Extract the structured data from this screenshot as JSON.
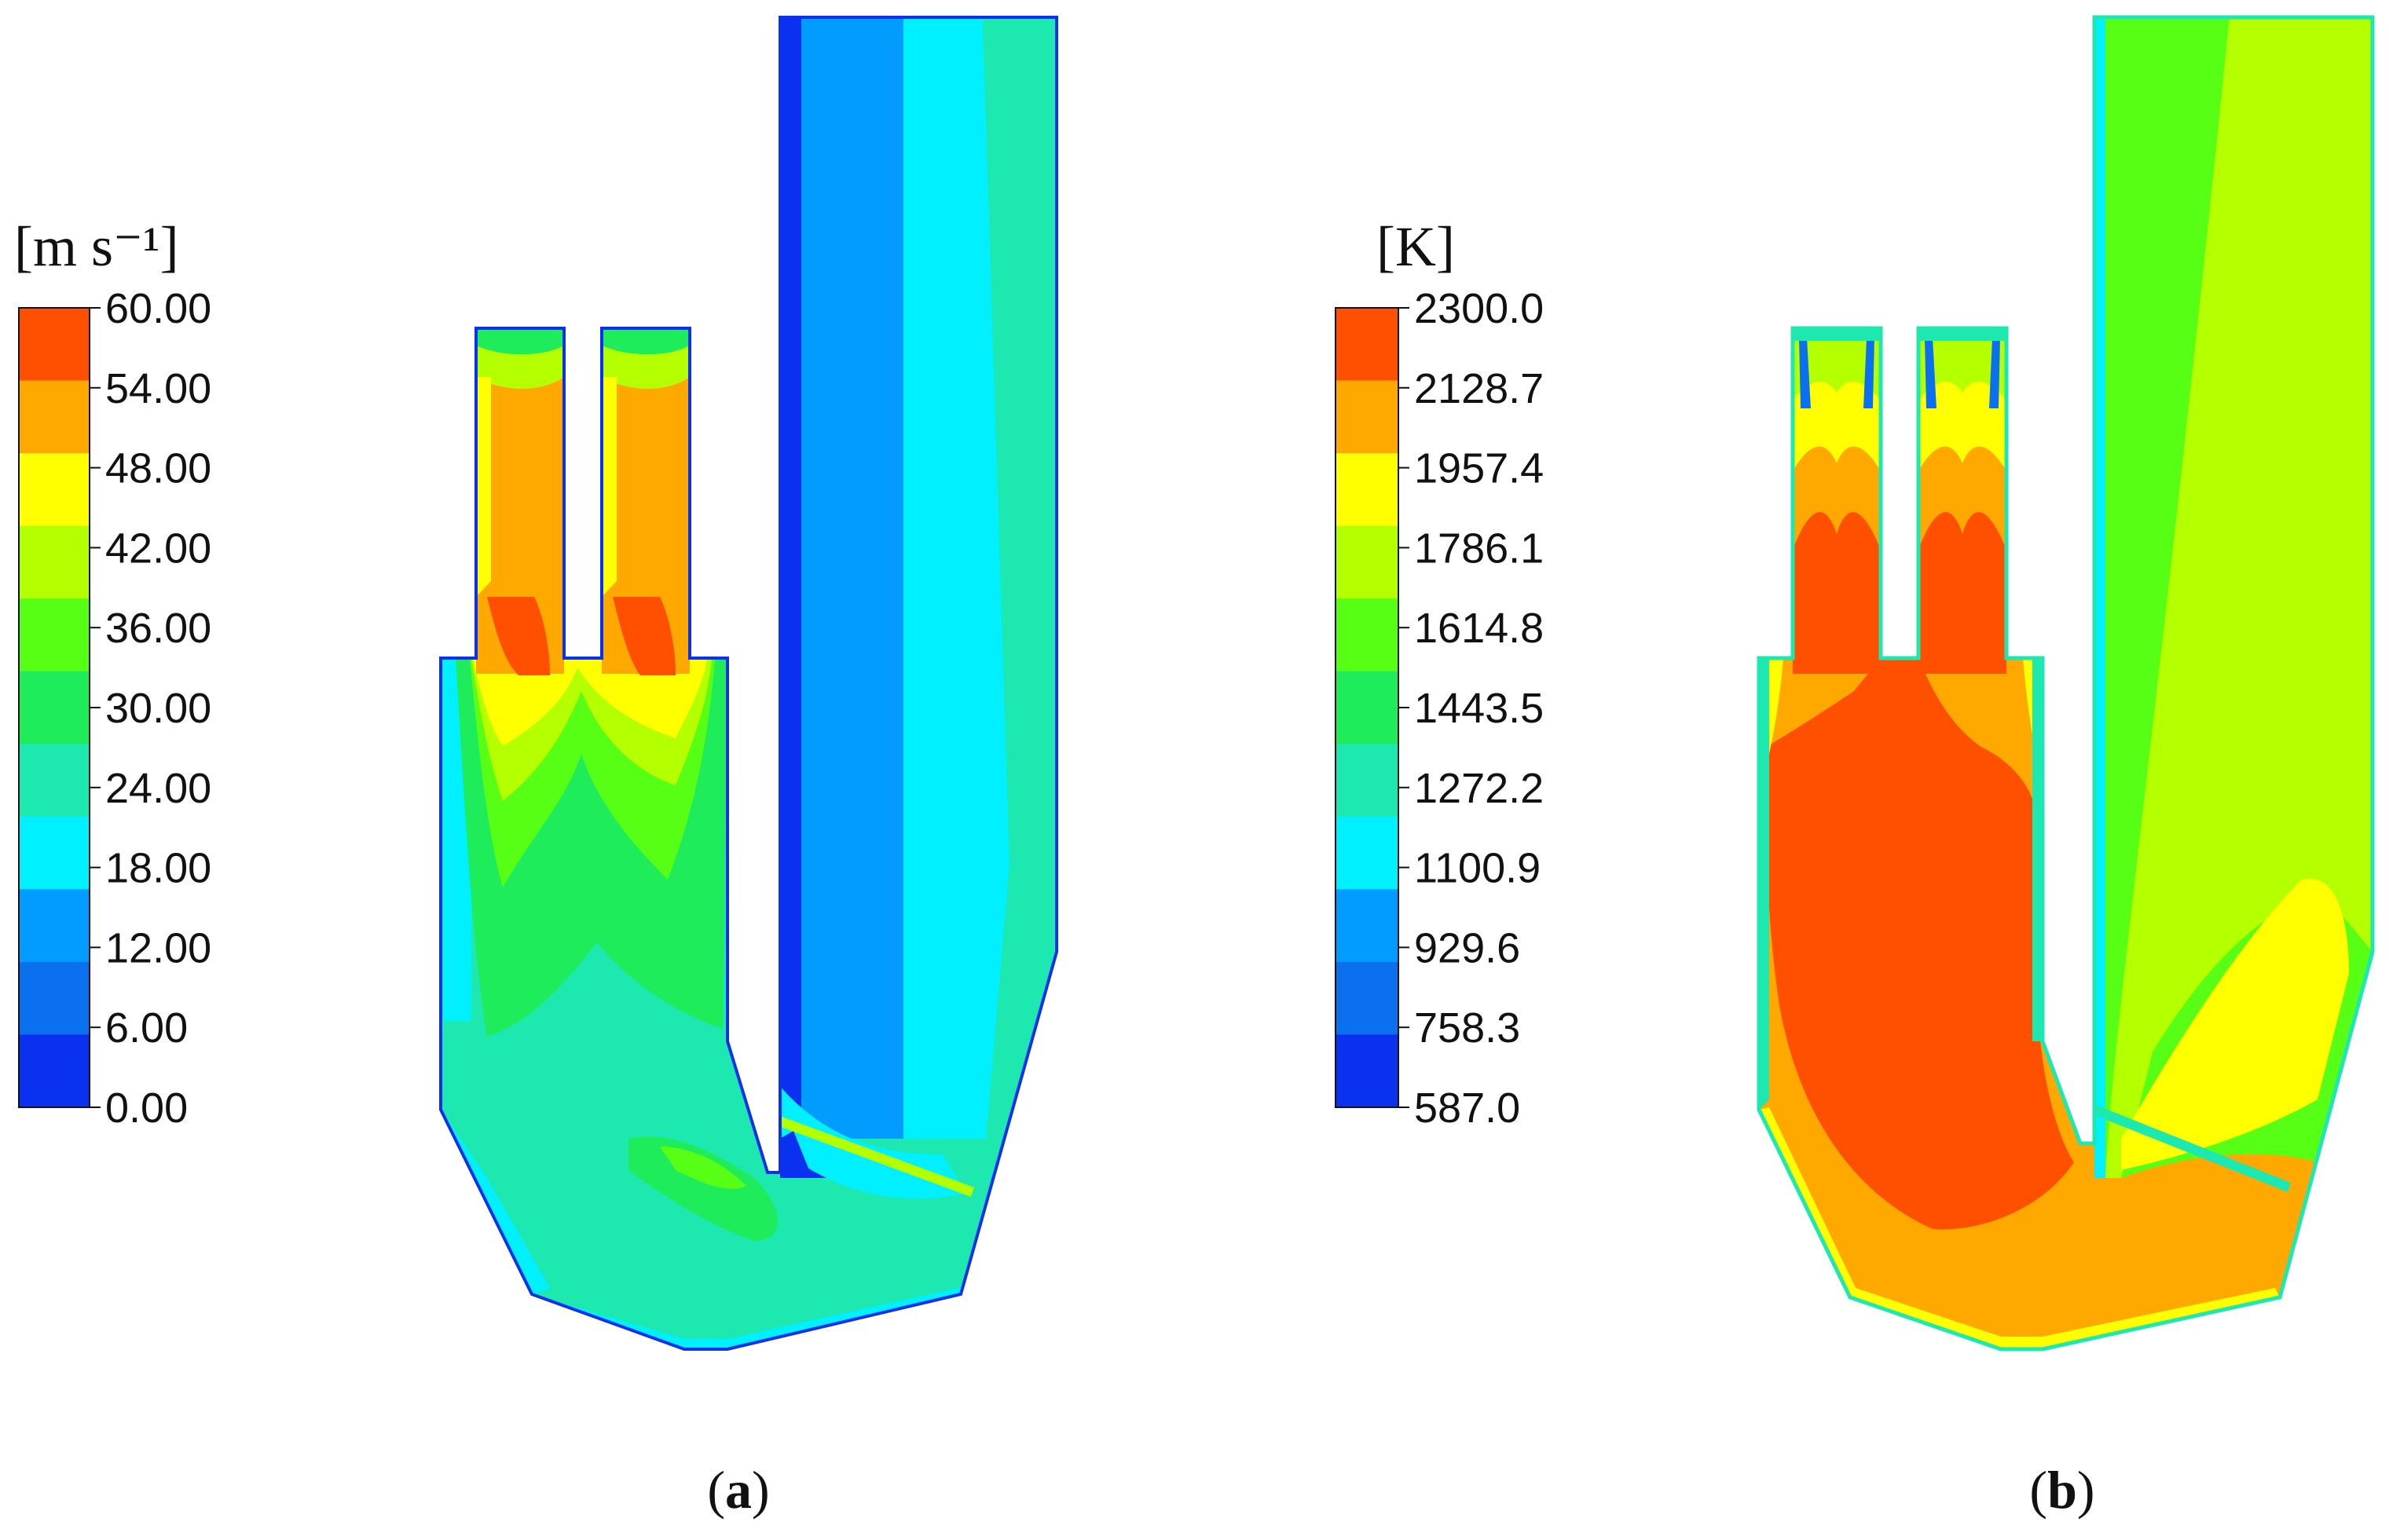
{
  "panels": [
    {
      "id": "a",
      "unit": "[m s⁻¹]",
      "caption_open": "(",
      "caption_letter": "a",
      "caption_close": ")",
      "ticks": [
        "60.00",
        "54.00",
        "48.00",
        "42.00",
        "36.00",
        "30.00",
        "24.00",
        "18.00",
        "12.00",
        "6.00",
        "0.00"
      ],
      "band_colors": [
        "#ff5000",
        "#ffa800",
        "#ffff00",
        "#b4ff00",
        "#56ff14",
        "#1eec5a",
        "#1ce8b0",
        "#00f0ff",
        "#009cff",
        "#0a70f0",
        "#0a30f0"
      ]
    },
    {
      "id": "b",
      "unit": "[K]",
      "caption_open": "(",
      "caption_letter": "b",
      "caption_close": ")",
      "ticks": [
        "2300.0",
        "2128.7",
        "1957.4",
        "1786.1",
        "1614.8",
        "1443.5",
        "1272.2",
        "1100.9",
        "929.6",
        "758.3",
        "587.0"
      ],
      "band_colors": [
        "#ff5000",
        "#ffa800",
        "#ffff00",
        "#b4ff00",
        "#56ff14",
        "#1eec5a",
        "#1ce8b0",
        "#00f0ff",
        "#009cff",
        "#0a70f0",
        "#0a30f0"
      ]
    }
  ],
  "palette": {
    "red": "#ff5000",
    "orange": "#ffa800",
    "yellow": "#ffff00",
    "lime": "#b4ff00",
    "green": "#56ff14",
    "mint": "#1eec5a",
    "aqua": "#1ce8b0",
    "cyan": "#00f0ff",
    "sky": "#009cff",
    "blue": "#0a70f0",
    "deep_blue": "#0a30f0"
  }
}
